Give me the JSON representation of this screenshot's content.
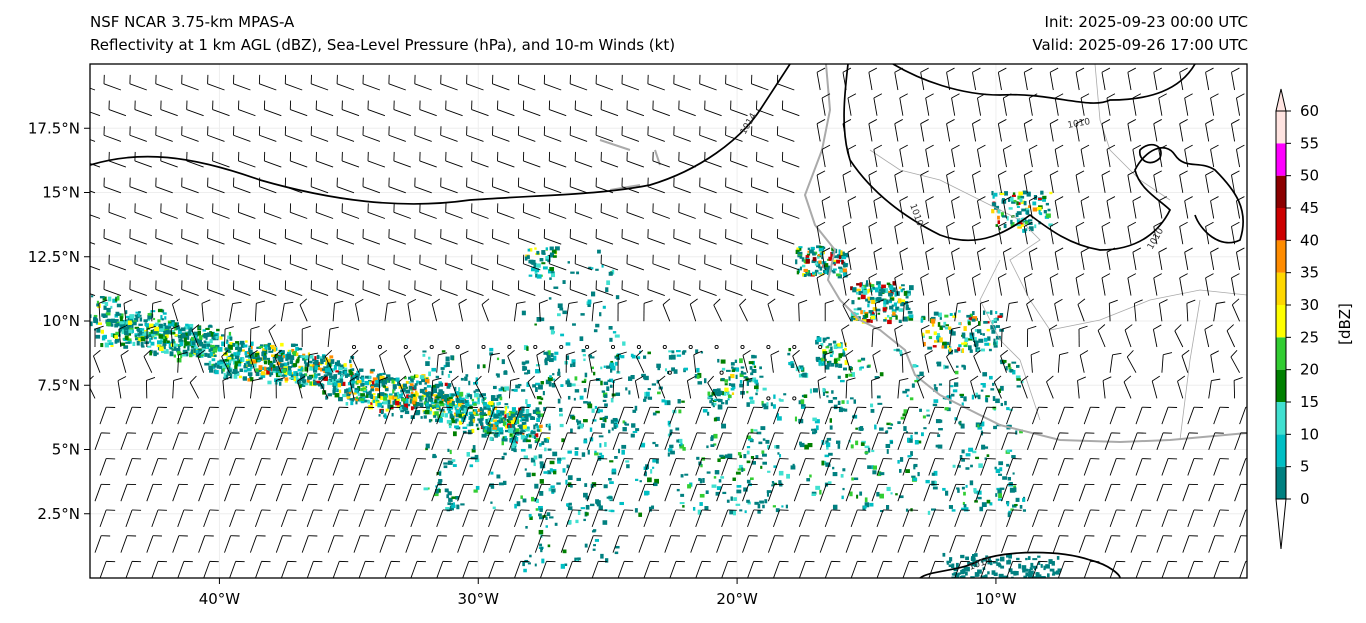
{
  "header": {
    "title_line1": "NSF NCAR 3.75-km MPAS-A",
    "title_line2": "Reflectivity at 1 km AGL (dBZ), Sea-Level Pressure (hPa), and 10-m Winds (kt)",
    "init": "Init: 2025-09-23 00:00 UTC",
    "valid": "Valid: 2025-09-26 17:00 UTC"
  },
  "map": {
    "lon_ticks": [
      {
        "lon": -40,
        "label": "40°W"
      },
      {
        "lon": -30,
        "label": "30°W"
      },
      {
        "lon": -20,
        "label": "20°W"
      },
      {
        "lon": -10,
        "label": "10°W"
      }
    ],
    "lat_ticks": [
      {
        "lat": 17.5,
        "label": "17.5°N"
      },
      {
        "lat": 15,
        "label": "15°N"
      },
      {
        "lat": 12.5,
        "label": "12.5°N"
      },
      {
        "lat": 10,
        "label": "10°N"
      },
      {
        "lat": 7.5,
        "label": "7.5°N"
      },
      {
        "lat": 5,
        "label": "5°N"
      },
      {
        "lat": 2.5,
        "label": "2.5°N"
      }
    ],
    "contour_labels": [
      "1014",
      "1010",
      "1010",
      "1010",
      "1014"
    ]
  },
  "colorbar": {
    "label": "[dBZ]",
    "ticks": [
      "0",
      "5",
      "10",
      "15",
      "20",
      "25",
      "30",
      "35",
      "40",
      "45",
      "50",
      "55",
      "60"
    ],
    "colors": [
      "#008080",
      "#00bfc4",
      "#40e0d0",
      "#008000",
      "#32cd32",
      "#ffff00",
      "#ffd700",
      "#ff8c00",
      "#cc0000",
      "#8b0000",
      "#ff00ff",
      "#ffe4e1"
    ]
  }
}
